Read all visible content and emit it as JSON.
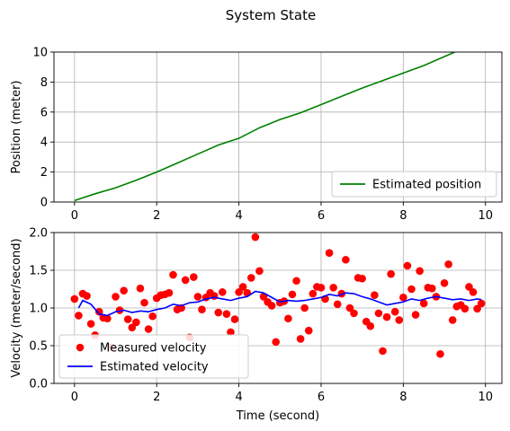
{
  "figure_title": "System State",
  "chart_data": [
    {
      "type": "line",
      "ylabel": "Position (meter)",
      "xlabel": "",
      "xlim": [
        -0.5,
        10.4
      ],
      "ylim": [
        0,
        10
      ],
      "xticks": [
        0,
        2,
        4,
        6,
        8,
        10
      ],
      "yticks": [
        0,
        2,
        4,
        6,
        8,
        10
      ],
      "grid": true,
      "legend_position": "lower right",
      "series": [
        {
          "name": "Estimated position",
          "color": "#008000",
          "x": [
            0,
            0.5,
            1,
            1.5,
            2,
            2.5,
            3,
            3.5,
            4,
            4.5,
            5,
            5.5,
            6,
            6.5,
            7,
            7.5,
            8,
            8.5,
            9,
            9.25
          ],
          "values": [
            0.1,
            0.55,
            0.95,
            1.45,
            2.0,
            2.6,
            3.2,
            3.8,
            4.25,
            4.95,
            5.5,
            5.95,
            6.5,
            7.05,
            7.6,
            8.1,
            8.6,
            9.1,
            9.7,
            10.0
          ]
        }
      ]
    },
    {
      "type": "scatter",
      "xlabel": "Time (second)",
      "ylabel": "Velocity (meter/second)",
      "xlim": [
        -0.5,
        10.4
      ],
      "ylim": [
        0,
        2
      ],
      "xticks": [
        0,
        2,
        4,
        6,
        8,
        10
      ],
      "yticks": [
        0.0,
        0.5,
        1.0,
        1.5,
        2.0
      ],
      "grid": true,
      "legend_position": "lower left",
      "series": [
        {
          "name": "Measured velocity",
          "kind": "scatter",
          "color": "#ff0000",
          "x": [
            0.0,
            0.1,
            0.2,
            0.3,
            0.4,
            0.5,
            0.6,
            0.7,
            0.8,
            0.9,
            1.0,
            1.1,
            1.2,
            1.3,
            1.4,
            1.5,
            1.6,
            1.7,
            1.8,
            1.9,
            2.0,
            2.1,
            2.2,
            2.3,
            2.4,
            2.5,
            2.6,
            2.7,
            2.8,
            2.9,
            3.0,
            3.1,
            3.2,
            3.3,
            3.4,
            3.5,
            3.6,
            3.7,
            3.8,
            3.9,
            4.0,
            4.1,
            4.2,
            4.3,
            4.4,
            4.5,
            4.6,
            4.7,
            4.8,
            4.9,
            5.0,
            5.1,
            5.2,
            5.3,
            5.4,
            5.5,
            5.6,
            5.7,
            5.8,
            5.9,
            6.0,
            6.1,
            6.2,
            6.3,
            6.4,
            6.5,
            6.6,
            6.7,
            6.8,
            6.9,
            7.0,
            7.1,
            7.2,
            7.3,
            7.4,
            7.5,
            7.6,
            7.7,
            7.8,
            7.9,
            8.0,
            8.1,
            8.2,
            8.3,
            8.4,
            8.5,
            8.6,
            8.7,
            8.8,
            8.9,
            9.0,
            9.1,
            9.2,
            9.3,
            9.4,
            9.5,
            9.6,
            9.7,
            9.8,
            9.9
          ],
          "values": [
            1.12,
            0.9,
            1.19,
            1.16,
            0.79,
            0.64,
            0.95,
            0.87,
            0.86,
            0.48,
            1.15,
            0.97,
            1.23,
            0.85,
            0.74,
            0.81,
            1.26,
            1.07,
            0.72,
            0.89,
            1.13,
            1.17,
            1.18,
            1.2,
            1.44,
            0.98,
            1.0,
            1.37,
            0.61,
            1.41,
            1.15,
            0.98,
            1.14,
            1.2,
            1.16,
            0.94,
            1.21,
            0.92,
            0.68,
            0.85,
            1.21,
            1.28,
            1.2,
            1.4,
            1.94,
            1.49,
            1.15,
            1.08,
            1.03,
            0.55,
            1.07,
            1.09,
            0.86,
            1.18,
            1.36,
            0.59,
            1.0,
            0.7,
            1.19,
            1.28,
            1.27,
            1.12,
            1.73,
            1.27,
            1.05,
            1.19,
            1.64,
            1.0,
            0.93,
            1.4,
            1.39,
            0.82,
            0.76,
            1.17,
            0.93,
            0.43,
            0.88,
            1.45,
            0.95,
            0.84,
            1.14,
            1.56,
            1.25,
            0.91,
            1.49,
            1.06,
            1.27,
            1.26,
            1.15,
            0.39,
            1.33,
            1.58,
            0.84,
            1.02,
            1.04,
            0.99,
            1.28,
            1.21,
            0.99,
            1.06
          ]
        },
        {
          "name": "Estimated velocity",
          "kind": "line",
          "color": "#0000ff",
          "x": [
            0.1,
            0.2,
            0.4,
            0.6,
            0.8,
            1.0,
            1.2,
            1.4,
            1.6,
            1.8,
            2.0,
            2.2,
            2.4,
            2.6,
            2.8,
            3.0,
            3.2,
            3.4,
            3.6,
            3.8,
            4.0,
            4.2,
            4.4,
            4.6,
            4.8,
            5.0,
            5.2,
            5.4,
            5.6,
            5.8,
            6.0,
            6.2,
            6.4,
            6.6,
            6.8,
            7.0,
            7.2,
            7.4,
            7.6,
            7.8,
            8.0,
            8.2,
            8.4,
            8.6,
            8.8,
            9.0,
            9.2,
            9.4,
            9.6,
            9.8,
            9.9
          ],
          "values": [
            1.0,
            1.1,
            1.05,
            0.92,
            0.9,
            0.95,
            0.97,
            0.94,
            0.96,
            0.95,
            0.98,
            1.0,
            1.05,
            1.03,
            1.07,
            1.08,
            1.12,
            1.14,
            1.12,
            1.1,
            1.13,
            1.15,
            1.22,
            1.2,
            1.14,
            1.08,
            1.1,
            1.09,
            1.1,
            1.12,
            1.14,
            1.18,
            1.16,
            1.2,
            1.19,
            1.15,
            1.12,
            1.08,
            1.04,
            1.06,
            1.08,
            1.12,
            1.1,
            1.13,
            1.15,
            1.13,
            1.11,
            1.12,
            1.1,
            1.12,
            1.11
          ]
        }
      ]
    }
  ]
}
